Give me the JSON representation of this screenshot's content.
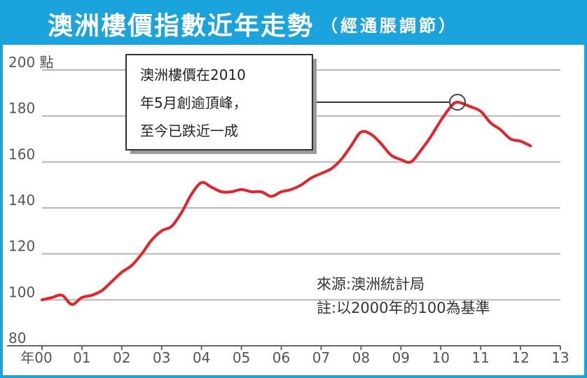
{
  "header": {
    "title": "澳洲樓價指數近年走勢",
    "subtitle": "（經通脹調節）"
  },
  "colors": {
    "frame": "#1aa3dc",
    "line": "#e8222a",
    "grid": "#b5b5b5"
  },
  "chart_data": {
    "type": "line",
    "title": "澳洲樓價指數近年走勢",
    "subtitle": "（經通脹調節）",
    "ylabel": "點",
    "y_unit_label": "200 點",
    "ylim": [
      80,
      200
    ],
    "yticks": [
      "200 點",
      "180",
      "160",
      "140",
      "120",
      "100",
      "80"
    ],
    "yticks_values": [
      200,
      180,
      160,
      140,
      120,
      100,
      80
    ],
    "xlim": [
      0,
      13
    ],
    "xticks": [
      "年00",
      "01",
      "02",
      "03",
      "04",
      "05",
      "06",
      "07",
      "08",
      "09",
      "10",
      "11",
      "12",
      "13"
    ],
    "xticks_values": [
      0,
      1,
      2,
      3,
      4,
      5,
      6,
      7,
      8,
      9,
      10,
      11,
      12,
      13
    ],
    "grid": true,
    "series": [
      {
        "x": [
          0,
          0.25,
          0.5,
          0.75,
          1.0,
          1.25,
          1.5,
          1.75,
          2.0,
          2.25,
          2.5,
          2.75,
          3.0,
          3.25,
          3.5,
          3.75,
          4.0,
          4.25,
          4.5,
          4.75,
          5.0,
          5.25,
          5.5,
          5.75,
          6.0,
          6.25,
          6.5,
          6.75,
          7.0,
          7.25,
          7.5,
          7.75,
          8.0,
          8.25,
          8.5,
          8.75,
          9.0,
          9.25,
          9.5,
          9.75,
          10.0,
          10.25,
          10.42,
          10.75,
          11.0,
          11.25,
          11.5,
          11.75,
          12.0,
          12.25
        ],
        "values": [
          100,
          101,
          102,
          98,
          101,
          102,
          104,
          108,
          112,
          115,
          120,
          126,
          130,
          132,
          138,
          146,
          151,
          149,
          147,
          147,
          148,
          147,
          147,
          145,
          147,
          148,
          150,
          153,
          155,
          157,
          161,
          167,
          173,
          172,
          168,
          163,
          161,
          160,
          165,
          171,
          178,
          184,
          186,
          184,
          182,
          177,
          174,
          170,
          169,
          167
        ]
      }
    ],
    "annotations": {
      "callout": [
        "澳洲樓價在2010",
        "年5月創逾頂峰，",
        "至今已跌近一成"
      ],
      "peak": {
        "x": 10.42,
        "y": 186
      },
      "source": "來源:澳洲統計局",
      "note": "註:以2000年的100為基準"
    }
  }
}
